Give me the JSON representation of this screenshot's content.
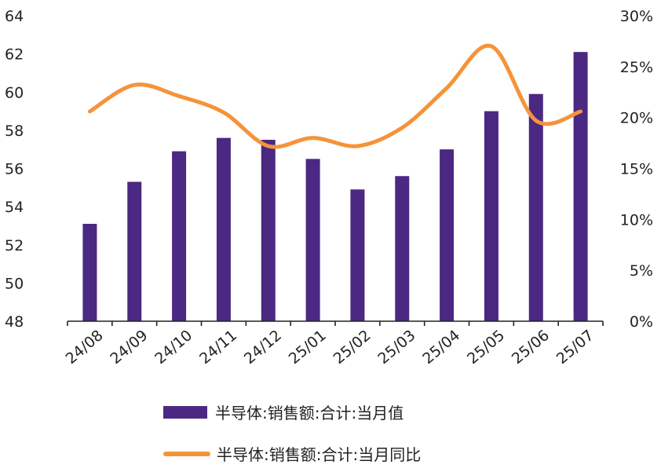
{
  "chart_data": {
    "type": "bar",
    "categories": [
      "24/08",
      "24/09",
      "24/10",
      "24/11",
      "24/12",
      "25/01",
      "25/02",
      "25/03",
      "25/04",
      "25/05",
      "25/06",
      "25/07"
    ],
    "series": [
      {
        "name": "半导体:销售额:合计:当月值",
        "kind": "bar",
        "axis": "left",
        "color": "#4B2882",
        "values": [
          53.1,
          55.3,
          56.9,
          57.6,
          57.5,
          56.5,
          54.9,
          55.6,
          57.0,
          59.0,
          59.9,
          62.1
        ]
      },
      {
        "name": "半导体:销售额:合计:当月同比",
        "kind": "line",
        "axis": "right",
        "color": "#F5933A",
        "values": [
          0.206,
          0.232,
          0.221,
          0.205,
          0.172,
          0.18,
          0.172,
          0.19,
          0.229,
          0.27,
          0.197,
          0.206
        ]
      }
    ],
    "y_left": {
      "ylim": [
        48,
        64
      ],
      "ticks": [
        "48",
        "50",
        "52",
        "54",
        "56",
        "58",
        "60",
        "62",
        "64"
      ]
    },
    "y_right": {
      "ylim": [
        0,
        0.3
      ],
      "ticks": [
        "0%",
        "5%",
        "10%",
        "15%",
        "20%",
        "25%",
        "30%"
      ]
    },
    "grid": false,
    "legend_position": "bottom"
  }
}
